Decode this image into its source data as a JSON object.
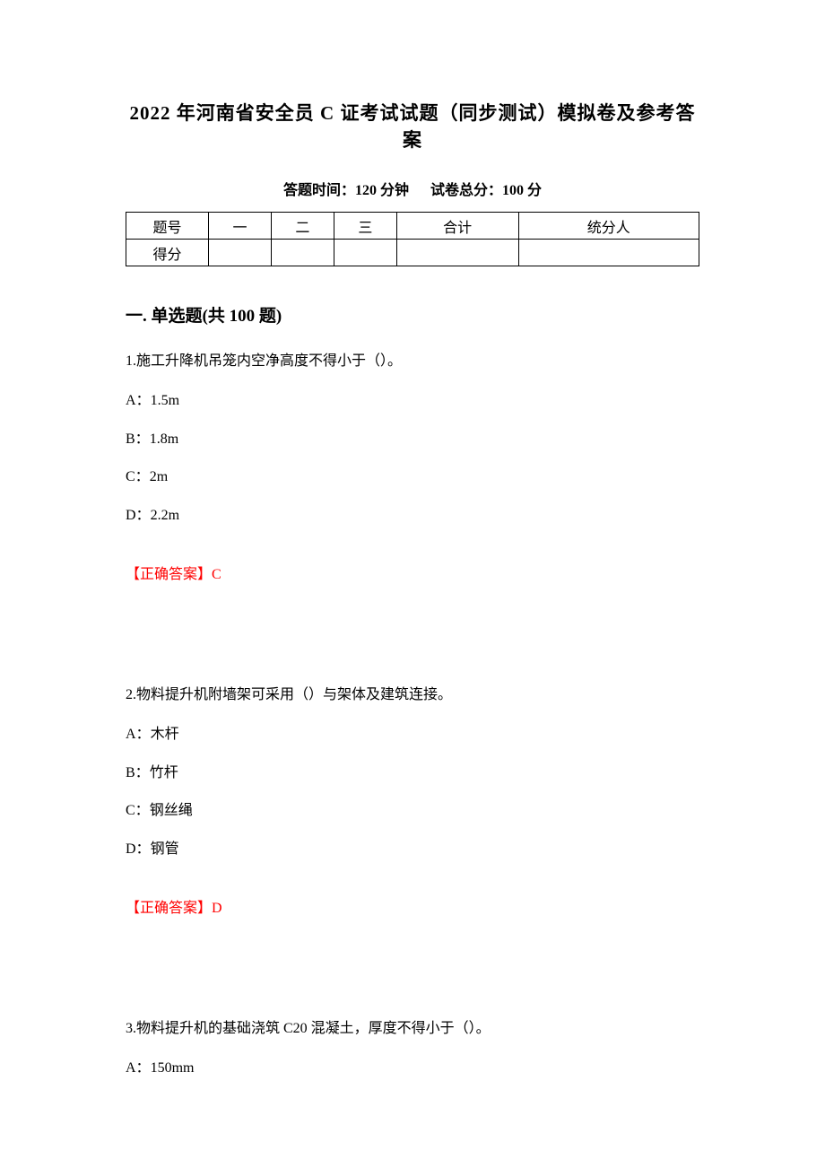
{
  "colors": {
    "text": "#000000",
    "answer": "#ff0000",
    "background": "#ffffff",
    "border": "#000000"
  },
  "fonts": {
    "body_family": "SimSun",
    "table_family": "KaiTi",
    "title_size_pt": 16,
    "subtitle_size_pt": 12,
    "section_size_pt": 14,
    "body_size_pt": 12
  },
  "title": "2022 年河南省安全员 C 证考试试题（同步测试）模拟卷及参考答案",
  "subtitle": {
    "time_label": "答题时间：",
    "time_value": "120 分钟",
    "total_label": "试卷总分：",
    "total_value": "100 分"
  },
  "score_table": {
    "row1": [
      "题号",
      "一",
      "二",
      "三",
      "合计",
      "统分人"
    ],
    "row2_label": "得分",
    "column_count": 6
  },
  "section_heading": "一. 单选题(共 100 题)",
  "questions": [
    {
      "number": "1.",
      "stem": "施工升降机吊笼内空净高度不得小于（）。",
      "options": [
        {
          "key": "A：",
          "text": "1.5m"
        },
        {
          "key": "B：",
          "text": "1.8m"
        },
        {
          "key": "C：",
          "text": "2m"
        },
        {
          "key": "D：",
          "text": "2.2m"
        }
      ],
      "answer_label": "【正确答案】",
      "answer_value": "C"
    },
    {
      "number": "2.",
      "stem": "物料提升机附墙架可采用（）与架体及建筑连接。",
      "options": [
        {
          "key": "A：",
          "text": "木杆"
        },
        {
          "key": "B：",
          "text": "竹杆"
        },
        {
          "key": "C：",
          "text": "钢丝绳"
        },
        {
          "key": "D：",
          "text": "钢管"
        }
      ],
      "answer_label": "【正确答案】",
      "answer_value": "D"
    },
    {
      "number": "3.",
      "stem": "物料提升机的基础浇筑 C20 混凝土，厚度不得小于（）。",
      "options": [
        {
          "key": "A：",
          "text": "150mm"
        }
      ],
      "answer_label": "",
      "answer_value": ""
    }
  ]
}
